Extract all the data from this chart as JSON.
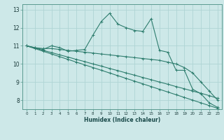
{
  "title": "",
  "xlabel": "Humidex (Indice chaleur)",
  "ylabel": "",
  "bg_color": "#cde8e8",
  "line_color": "#2e7d6e",
  "grid_color": "#afd4d4",
  "spine_color": "#5a9a90",
  "xlim": [
    -0.5,
    23.5
  ],
  "ylim": [
    7.5,
    13.3
  ],
  "xticks": [
    0,
    1,
    2,
    3,
    4,
    5,
    6,
    7,
    8,
    9,
    10,
    11,
    12,
    13,
    14,
    15,
    16,
    17,
    18,
    19,
    20,
    21,
    22,
    23
  ],
  "yticks": [
    8,
    9,
    10,
    11,
    12,
    13
  ],
  "figsize": [
    3.2,
    2.0
  ],
  "dpi": 100,
  "lines": [
    {
      "x": [
        0,
        1,
        2,
        3,
        4,
        5,
        6,
        7,
        8,
        9,
        10,
        11,
        12,
        13,
        14,
        15,
        16,
        17,
        18,
        19,
        20,
        21,
        22,
        23
      ],
      "y": [
        11.0,
        10.9,
        10.8,
        11.0,
        10.9,
        10.7,
        10.75,
        10.8,
        11.6,
        12.35,
        12.8,
        12.2,
        12.0,
        11.85,
        11.8,
        12.5,
        10.75,
        10.65,
        9.65,
        9.65,
        8.6,
        8.35,
        7.85,
        7.6
      ]
    },
    {
      "x": [
        0,
        1,
        2,
        3,
        4,
        5,
        6,
        7,
        8,
        9,
        10,
        11,
        12,
        13,
        14,
        15,
        16,
        17,
        18,
        19,
        20,
        21,
        22,
        23
      ],
      "y": [
        11.0,
        10.9,
        10.85,
        10.85,
        10.8,
        10.75,
        10.7,
        10.65,
        10.6,
        10.55,
        10.5,
        10.45,
        10.4,
        10.35,
        10.3,
        10.25,
        10.2,
        10.1,
        10.0,
        9.8,
        9.5,
        9.0,
        8.5,
        8.0
      ]
    },
    {
      "x": [
        0,
        1,
        2,
        3,
        4,
        5,
        6,
        7,
        8,
        9,
        10,
        11,
        12,
        13,
        14,
        15,
        16,
        17,
        18,
        19,
        20,
        21,
        22,
        23
      ],
      "y": [
        11.0,
        10.88,
        10.75,
        10.63,
        10.5,
        10.38,
        10.25,
        10.13,
        10.0,
        9.88,
        9.75,
        9.63,
        9.5,
        9.38,
        9.25,
        9.13,
        9.0,
        8.88,
        8.75,
        8.63,
        8.5,
        8.38,
        8.25,
        8.1
      ]
    },
    {
      "x": [
        0,
        1,
        2,
        3,
        4,
        5,
        6,
        7,
        8,
        9,
        10,
        11,
        12,
        13,
        14,
        15,
        16,
        17,
        18,
        19,
        20,
        21,
        22,
        23
      ],
      "y": [
        11.0,
        10.85,
        10.7,
        10.55,
        10.4,
        10.25,
        10.1,
        9.95,
        9.8,
        9.65,
        9.5,
        9.35,
        9.2,
        9.05,
        8.9,
        8.75,
        8.6,
        8.45,
        8.3,
        8.15,
        8.0,
        7.85,
        7.7,
        7.55
      ]
    }
  ]
}
